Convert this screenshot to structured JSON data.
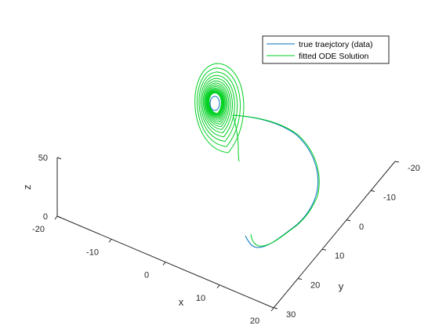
{
  "chart_data": {
    "type": "line",
    "projection": "3d",
    "title": "",
    "xlabel": "x",
    "ylabel": "y",
    "zlabel": "z",
    "xlim": [
      -20,
      20
    ],
    "ylim": [
      -20,
      30
    ],
    "zlim": [
      0,
      50
    ],
    "x_ticks": [
      {
        "value": -20,
        "label": "-20"
      },
      {
        "value": -10,
        "label": "-10"
      },
      {
        "value": 0,
        "label": "0"
      },
      {
        "value": 10,
        "label": "10"
      },
      {
        "value": 20,
        "label": "20"
      }
    ],
    "y_ticks": [
      {
        "value": -20,
        "label": "-20"
      },
      {
        "value": -10,
        "label": "-10"
      },
      {
        "value": 0,
        "label": "0"
      },
      {
        "value": 10,
        "label": "10"
      },
      {
        "value": 20,
        "label": "20"
      },
      {
        "value": 30,
        "label": "30"
      }
    ],
    "z_ticks": [
      {
        "value": 0,
        "label": "0"
      },
      {
        "value": 50,
        "label": "50"
      }
    ],
    "grid": false,
    "legend_position": "top-right",
    "series": [
      {
        "name": "true traejctory (data)",
        "color": "#0072BD",
        "description_points": [
          {
            "x": 0.0,
            "y": 26.0,
            "z": 0.5
          },
          {
            "x": 10.0,
            "y": 18.0,
            "z": 3.0
          },
          {
            "x": 18.0,
            "y": 5.0,
            "z": 12.0
          },
          {
            "x": 17.0,
            "y": -10.0,
            "z": 28.0
          },
          {
            "x": 10.0,
            "y": -20.0,
            "z": 40.0
          },
          {
            "x": 0.0,
            "y": -23.0,
            "z": 45.0
          }
        ]
      },
      {
        "name": "fitted ODE Solution",
        "color": "#00D020",
        "description_points": [
          {
            "x": 0.0,
            "y": 26.0,
            "z": 0.5
          },
          {
            "x": 10.0,
            "y": 18.0,
            "z": 3.0
          },
          {
            "x": 18.0,
            "y": 5.0,
            "z": 12.0
          },
          {
            "x": 17.0,
            "y": -10.0,
            "z": 28.0
          },
          {
            "x": 10.0,
            "y": -20.0,
            "z": 40.0
          },
          {
            "x": 0.0,
            "y": -23.0,
            "z": 45.0
          }
        ]
      }
    ]
  }
}
